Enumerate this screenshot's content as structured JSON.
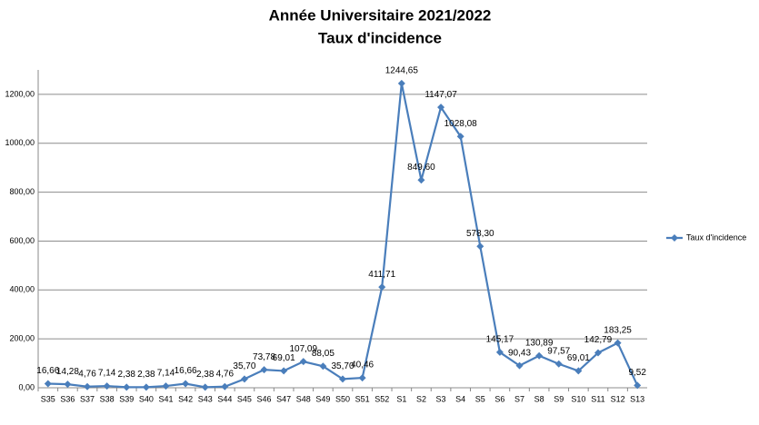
{
  "chart_data": {
    "type": "line",
    "title": "Année Universitaire 2021/2022",
    "subtitle": "Taux d'incidence",
    "categories": [
      "S35",
      "S36",
      "S37",
      "S38",
      "S39",
      "S40",
      "S41",
      "S42",
      "S43",
      "S44",
      "S45",
      "S46",
      "S47",
      "S48",
      "S49",
      "S50",
      "S51",
      "S52",
      "S1",
      "S2",
      "S3",
      "S4",
      "S5",
      "S6",
      "S7",
      "S8",
      "S9",
      "S10",
      "S11",
      "S12",
      "S13"
    ],
    "series": [
      {
        "name": "Taux d'incidence",
        "color": "#4a7ebb",
        "values": [
          16.66,
          14.28,
          4.76,
          7.14,
          2.38,
          2.38,
          7.14,
          16.66,
          2.38,
          4.76,
          35.7,
          73.78,
          69.01,
          107.09,
          88.05,
          35.7,
          40.46,
          411.71,
          1244.65,
          849.6,
          1147.07,
          1028.08,
          578.3,
          145.17,
          90.43,
          130.89,
          97.57,
          69.01,
          142.79,
          183.25,
          9.52
        ],
        "value_labels": [
          "16,66",
          "14,28",
          "4,76",
          "7,14",
          "2,38",
          "2,38",
          "7,14",
          "16,66",
          "2,38",
          "4,76",
          "35,70",
          "73,78",
          "69,01",
          "107,09",
          "88,05",
          "35,70",
          "40,46",
          "411,71",
          "1244,65",
          "849,60",
          "1147,07",
          "1028,08",
          "578,30",
          "145,17",
          "90,43",
          "130,89",
          "97,57",
          "69,01",
          "142,79",
          "183,25",
          "9,52"
        ]
      }
    ],
    "ylim": [
      0,
      1300
    ],
    "yticks": [
      {
        "value": 0,
        "label": "0,00"
      },
      {
        "value": 200,
        "label": "200,00"
      },
      {
        "value": 400,
        "label": "400,00"
      },
      {
        "value": 600,
        "label": "600,00"
      },
      {
        "value": 800,
        "label": "800,00"
      },
      {
        "value": 1000,
        "label": "1000,00"
      },
      {
        "value": 1200,
        "label": "1200,00"
      }
    ],
    "grid": true,
    "legend": "right"
  }
}
